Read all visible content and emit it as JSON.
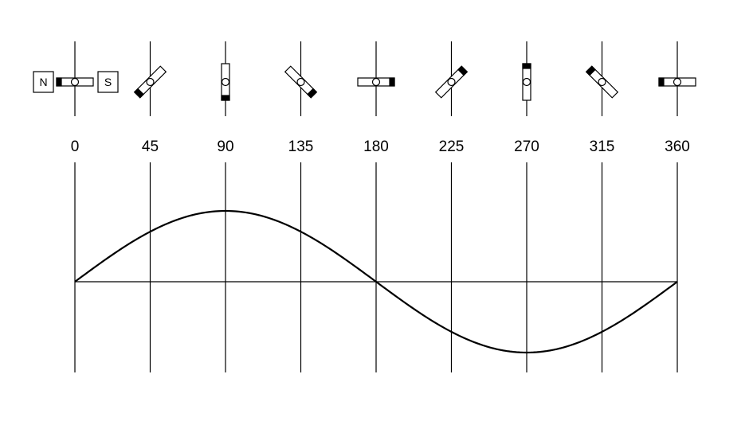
{
  "magnets": {
    "north_label": "N",
    "south_label": "S"
  },
  "angles": [
    "0",
    "45",
    "90",
    "135",
    "180",
    "225",
    "270",
    "315",
    "360"
  ],
  "waveform": {
    "type": "sine",
    "x_start_deg": 0,
    "x_end_deg": 360,
    "amplitude": 1
  },
  "colors": {
    "stroke": "#000000",
    "background": "#ffffff",
    "pole_marker": "#000000"
  }
}
